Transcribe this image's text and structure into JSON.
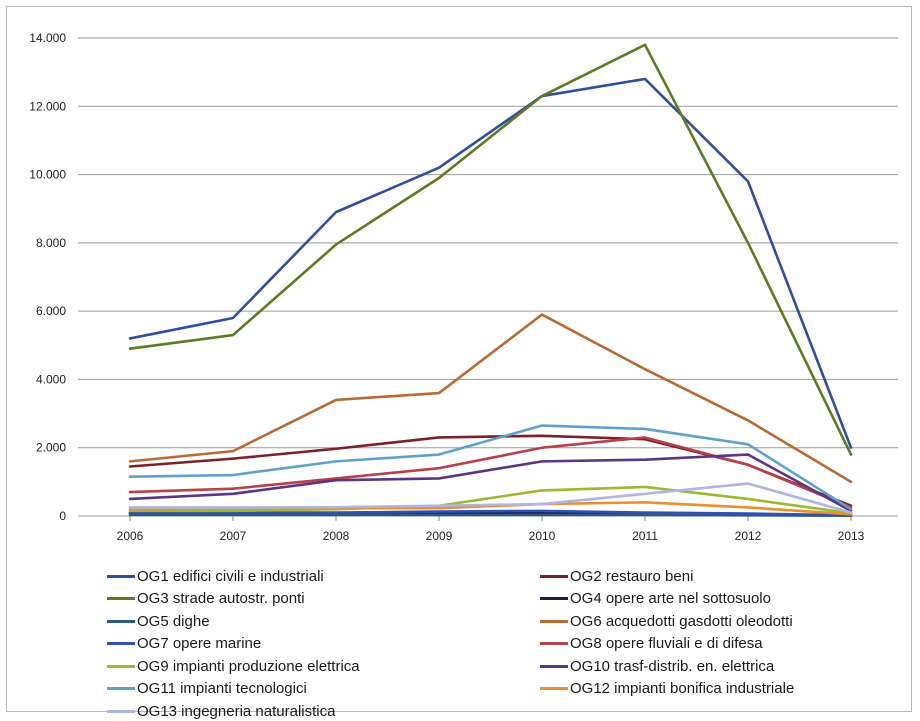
{
  "chart_data": {
    "type": "line",
    "categories": [
      "2006",
      "2007",
      "2008",
      "2009",
      "2010",
      "2011",
      "2012",
      "2013"
    ],
    "ylim": [
      0,
      14000
    ],
    "yticks": [
      0,
      2000,
      4000,
      6000,
      8000,
      10000,
      12000,
      14000
    ],
    "ytick_labels": [
      "0",
      "2.000",
      "4.000",
      "6.000",
      "8.000",
      "10.000",
      "12.000",
      "14.000"
    ],
    "grid": true,
    "legend_position": "bottom",
    "series": [
      {
        "name": "OG1 edifici civili e industriali",
        "color": "#2e4fa0",
        "values": [
          5200,
          5800,
          8900,
          10200,
          12300,
          12800,
          9800,
          2000
        ]
      },
      {
        "name": "OG2 restauro beni",
        "color": "#7a1f2b",
        "values": [
          1450,
          1680,
          1970,
          2300,
          2350,
          2250,
          1500,
          300
        ]
      },
      {
        "name": "OG3 strade autostr. ponti",
        "color": "#5f7a22",
        "values": [
          4900,
          5300,
          7950,
          9900,
          12300,
          13800,
          8000,
          1800
        ]
      },
      {
        "name": "OG4 opere arte nel sottosuolo",
        "color": "#1f1a4a",
        "values": [
          80,
          80,
          90,
          90,
          80,
          60,
          50,
          20
        ]
      },
      {
        "name": "OG5 dighe",
        "color": "#2e5a7a",
        "values": [
          30,
          30,
          30,
          30,
          30,
          30,
          20,
          10
        ]
      },
      {
        "name": "OG6 acquedotti gasdotti oleodotti",
        "color": "#b86a35",
        "values": [
          1600,
          1900,
          3400,
          3600,
          5900,
          4300,
          2800,
          1000
        ]
      },
      {
        "name": "OG7 opere marine",
        "color": "#3050b8",
        "values": [
          100,
          100,
          100,
          130,
          150,
          100,
          70,
          20
        ]
      },
      {
        "name": "OG8 opere fluviali e di difesa",
        "color": "#b8404a",
        "values": [
          700,
          800,
          1100,
          1400,
          2000,
          2300,
          1500,
          250
        ]
      },
      {
        "name": "OG9 impianti produzione elettrica",
        "color": "#9ab830",
        "values": [
          150,
          150,
          200,
          300,
          750,
          850,
          500,
          80
        ]
      },
      {
        "name": "OG10 trasf-distrib. en. elettrica",
        "color": "#5a3585",
        "values": [
          500,
          650,
          1050,
          1100,
          1600,
          1650,
          1800,
          150
        ]
      },
      {
        "name": "OG11 impianti tecnologici",
        "color": "#5fa0cc",
        "values": [
          1150,
          1200,
          1600,
          1800,
          2650,
          2550,
          2100,
          200
        ]
      },
      {
        "name": "OG12 impianti bonifica industriale",
        "color": "#e89030",
        "values": [
          200,
          220,
          230,
          230,
          350,
          400,
          250,
          50
        ]
      },
      {
        "name": "OG13 ingegneria naturalistica",
        "color": "#b0b4e0",
        "values": [
          250,
          250,
          260,
          300,
          350,
          650,
          950,
          100
        ]
      }
    ]
  }
}
